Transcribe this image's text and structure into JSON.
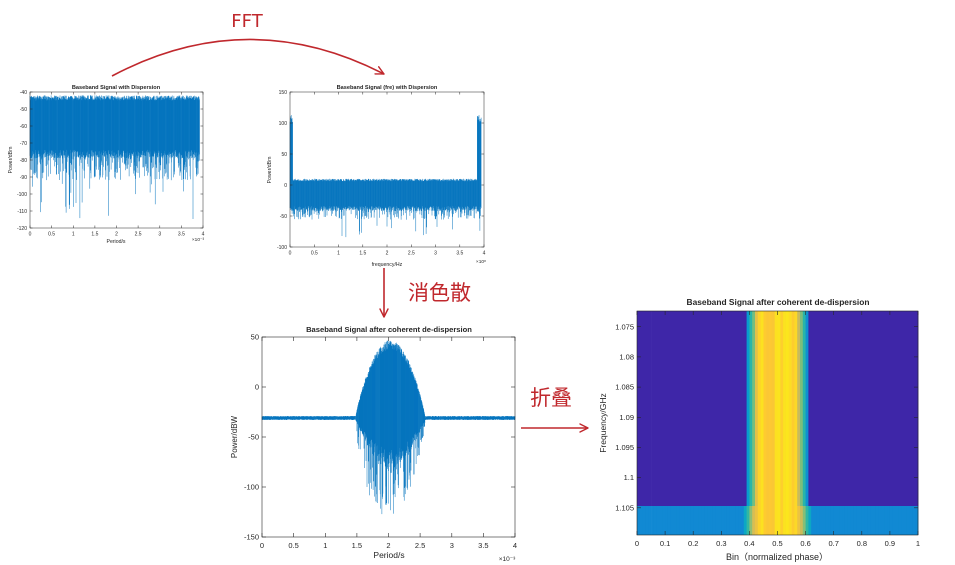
{
  "figure": {
    "arrow_labels": {
      "fft": "FFT",
      "dedispersion": "消色散",
      "folding": "折叠"
    },
    "colors": {
      "arrow": "#c0282d",
      "signal": "#0072bd",
      "axes": "#262626",
      "text": "#262626",
      "background": "#ffffff"
    }
  },
  "chart_data": [
    {
      "id": "dispersed_time",
      "type": "line",
      "title": "Baseband Signal with Dispersion",
      "xlabel": "Period/s",
      "ylabel": "Power/dBm",
      "x_multiplier": "×10⁻³",
      "xlim": [
        0,
        4
      ],
      "ylim": [
        -120,
        -40
      ],
      "xticks": [
        "0",
        "0.5",
        "1",
        "1.5",
        "2",
        "2.5",
        "3",
        "3.5",
        "4"
      ],
      "yticks": [
        "-40",
        "-50",
        "-60",
        "-70",
        "-80",
        "-90",
        "-100",
        "-110",
        "-120"
      ],
      "signal": {
        "x_span": [
          0,
          3.92
        ],
        "upper_envelope": -42,
        "lower_envelope": -74,
        "min_value": -116
      }
    },
    {
      "id": "dispersed_frequency",
      "type": "line",
      "title": "Baseband Signal (fre) with Dispersion",
      "xlabel": "frequency/Hz",
      "ylabel": "Power/dBm",
      "x_multiplier": "×10⁸",
      "xlim": [
        0,
        4
      ],
      "ylim": [
        -100,
        150
      ],
      "xticks": [
        "0",
        "0.5",
        "1",
        "1.5",
        "2",
        "2.5",
        "3",
        "3.5",
        "4"
      ],
      "yticks": [
        "150",
        "100",
        "50",
        "0",
        "-50",
        "-100"
      ],
      "signal": {
        "x_span": [
          0,
          3.94
        ],
        "upper_envelope": 10,
        "lower_envelope": -38,
        "min_value": -90,
        "edge_peak": 113,
        "left_edge_end": 0.06,
        "right_edge_start": 3.86
      }
    },
    {
      "id": "dedispersed_time",
      "type": "line",
      "title": "Baseband Signal after coherent de-dispersion",
      "xlabel": "Period/s",
      "ylabel": "Power/dBW",
      "x_multiplier": "×10⁻³",
      "xlim": [
        0,
        4
      ],
      "ylim": [
        -150,
        50
      ],
      "xticks": [
        "0",
        "0.5",
        "1",
        "1.5",
        "2",
        "2.5",
        "3",
        "3.5",
        "4"
      ],
      "yticks": [
        "50",
        "0",
        "-50",
        "-100",
        "-150"
      ],
      "signal": {
        "baseline": -31,
        "pulse_start": 1.48,
        "pulse_end": 2.58,
        "pulse_peak": 47,
        "pulse_floor": -143
      }
    },
    {
      "id": "folded_profile",
      "type": "heatmap",
      "title": "Baseband Signal after coherent de-dispersion",
      "xlabel": "Bin（normalized phase）",
      "ylabel": "Frequency/GHz",
      "xlim": [
        0,
        1
      ],
      "ylim": [
        1.0724,
        1.1095
      ],
      "y_reversed": true,
      "xticks": [
        "0",
        "0.1",
        "0.2",
        "0.3",
        "0.4",
        "0.5",
        "0.6",
        "0.7",
        "0.8",
        "0.9",
        "1"
      ],
      "yticks": [
        "1.075",
        "1.08",
        "1.085",
        "1.09",
        "1.095",
        "1.1",
        "1.105"
      ],
      "colormap": [
        "#3e26a8",
        "#0f5cdd",
        "#1481d6",
        "#06a4ca",
        "#2eb7a4",
        "#87bf77",
        "#d1bb59",
        "#fec832",
        "#f9fb0e"
      ],
      "profile": [
        [
          0,
          0
        ],
        [
          0.39,
          0
        ],
        [
          0.396,
          0.38
        ],
        [
          0.41,
          0.55
        ],
        [
          0.425,
          0.78
        ],
        [
          0.437,
          0.97
        ],
        [
          0.56,
          0.97
        ],
        [
          0.572,
          0.8
        ],
        [
          0.59,
          0.55
        ],
        [
          0.604,
          0.38
        ],
        [
          0.61,
          0
        ],
        [
          1,
          0
        ]
      ],
      "strip": {
        "from": 1.1047,
        "base_level": 0.28
      }
    }
  ]
}
